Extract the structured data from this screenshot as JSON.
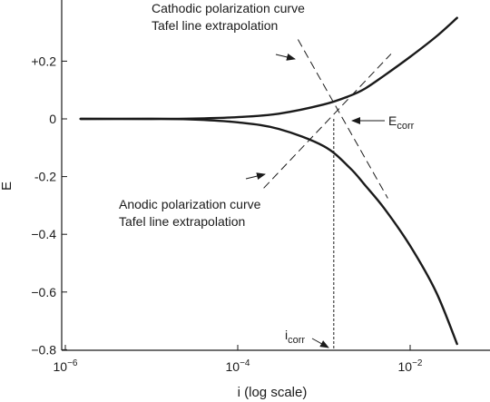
{
  "chart_data": {
    "type": "line",
    "xlabel": "i (log scale)",
    "ylabel": "E",
    "x_scale": "log",
    "xlim": [
      1e-06,
      0.1
    ],
    "ylim": [
      -0.8,
      0.35
    ],
    "x_ticks": [
      {
        "value": 1e-06,
        "label": "10",
        "exp": "−6"
      },
      {
        "value": 0.0001,
        "label": "10",
        "exp": "−4"
      },
      {
        "value": 0.01,
        "label": "10",
        "exp": "−2"
      }
    ],
    "y_ticks": [
      {
        "value": 0.2,
        "label": "+0.2"
      },
      {
        "value": 0,
        "label": "0"
      },
      {
        "value": -0.2,
        "label": "-0.2"
      },
      {
        "value": -0.4,
        "label": "−0.4"
      },
      {
        "value": -0.6,
        "label": "−0.6"
      },
      {
        "value": -0.8,
        "label": "−0.8"
      }
    ],
    "series": [
      {
        "x": [
          1.5e-06,
          1e-05,
          3e-05,
          0.0001,
          0.0003,
          0.001,
          0.002,
          0.003,
          0.005,
          0.01,
          0.02,
          0.035
        ],
        "y": [
          0,
          0,
          0.001,
          0.006,
          0.018,
          0.05,
          0.08,
          0.105,
          0.15,
          0.215,
          0.285,
          0.35
        ]
      },
      {
        "x": [
          1.5e-06,
          1e-05,
          3e-05,
          0.0001,
          0.0003,
          0.001,
          0.002,
          0.003,
          0.005,
          0.01,
          0.02,
          0.035
        ],
        "y": [
          0,
          0,
          -0.002,
          -0.012,
          -0.035,
          -0.095,
          -0.17,
          -0.23,
          -0.31,
          -0.44,
          -0.6,
          -0.78
        ]
      }
    ],
    "tafel_lines": [
      {
        "x": [
          0.0002,
          0.006
        ],
        "y": [
          -0.24,
          0.225
        ]
      },
      {
        "x": [
          0.0005,
          0.0055
        ],
        "y": [
          0.275,
          -0.275
        ]
      }
    ],
    "i_corr_x": 0.0013,
    "annotations": {
      "cathodic_line1": "Cathodic polarization curve",
      "cathodic_line2": "Tafel line extrapolation",
      "anodic_line1": "Anodic polarization curve",
      "anodic_line2": "Tafel line extrapolation",
      "ecorr_main": "E",
      "ecorr_sub": "corr",
      "icorr_main": "i",
      "icorr_sub": "corr"
    },
    "grid": false,
    "legend": "none"
  }
}
